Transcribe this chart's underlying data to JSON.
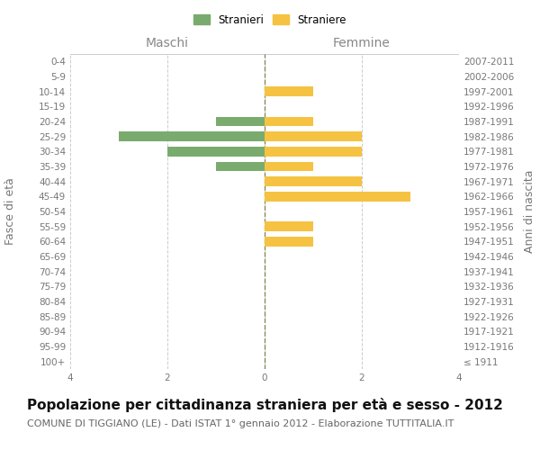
{
  "age_groups": [
    "100+",
    "95-99",
    "90-94",
    "85-89",
    "80-84",
    "75-79",
    "70-74",
    "65-69",
    "60-64",
    "55-59",
    "50-54",
    "45-49",
    "40-44",
    "35-39",
    "30-34",
    "25-29",
    "20-24",
    "15-19",
    "10-14",
    "5-9",
    "0-4"
  ],
  "birth_years": [
    "≤ 1911",
    "1912-1916",
    "1917-1921",
    "1922-1926",
    "1927-1931",
    "1932-1936",
    "1937-1941",
    "1942-1946",
    "1947-1951",
    "1952-1956",
    "1957-1961",
    "1962-1966",
    "1967-1971",
    "1972-1976",
    "1977-1981",
    "1982-1986",
    "1987-1991",
    "1992-1996",
    "1997-2001",
    "2002-2006",
    "2007-2011"
  ],
  "maschi": [
    0,
    0,
    0,
    0,
    0,
    0,
    0,
    0,
    0,
    0,
    0,
    0,
    0,
    1,
    2,
    3,
    1,
    0,
    0,
    0,
    0
  ],
  "femmine": [
    0,
    0,
    0,
    0,
    0,
    0,
    0,
    0,
    1,
    1,
    0,
    3,
    2,
    1,
    2,
    2,
    1,
    0,
    1,
    0,
    0
  ],
  "color_maschi": "#7aab6e",
  "color_femmine": "#f5c242",
  "background_color": "#ffffff",
  "grid_color": "#cccccc",
  "center_line_color": "#8a8a5a",
  "title": "Popolazione per cittadinanza straniera per età e sesso - 2012",
  "subtitle": "COMUNE DI TIGGIANO (LE) - Dati ISTAT 1° gennaio 2012 - Elaborazione TUTTITALIA.IT",
  "xlabel_left": "Maschi",
  "xlabel_right": "Femmine",
  "ylabel_left": "Fasce di età",
  "ylabel_right": "Anni di nascita",
  "legend_maschi": "Stranieri",
  "legend_femmine": "Straniere",
  "xlim": 4,
  "title_fontsize": 11,
  "subtitle_fontsize": 8,
  "axis_label_fontsize": 9,
  "tick_fontsize": 7.5
}
